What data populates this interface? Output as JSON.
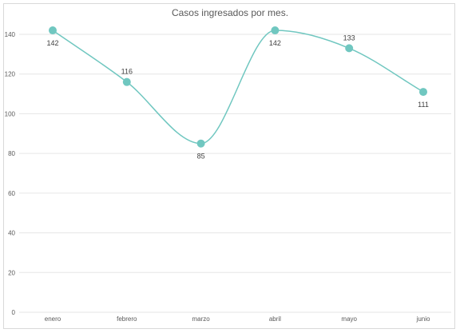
{
  "chart_data": {
    "type": "line",
    "title": "Casos ingresados por mes.",
    "categories": [
      "enero",
      "febrero",
      "marzo",
      "abril",
      "mayo",
      "junio"
    ],
    "series": [
      {
        "values": [
          142,
          116,
          85,
          142,
          133,
          111
        ]
      }
    ],
    "ylim": [
      0,
      140
    ],
    "yticks": [
      0,
      20,
      40,
      60,
      80,
      100,
      120,
      140
    ],
    "grid": true,
    "smooth": true,
    "data_label_position": [
      "below",
      "above",
      "below",
      "below",
      "above",
      "below"
    ],
    "colors": {
      "line": "#70c7c0",
      "marker": "#70c7c0",
      "grid": "#e6e6e6"
    }
  }
}
